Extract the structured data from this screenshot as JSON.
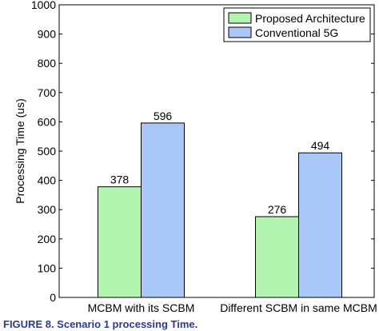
{
  "chart_data": {
    "type": "bar",
    "categories": [
      "MCBM with its SCBM",
      "Different SCBM in same MCBM"
    ],
    "series": [
      {
        "name": "Proposed Architecture",
        "values": [
          378,
          276
        ],
        "color": "#b3f5b0"
      },
      {
        "name": "Conventional 5G",
        "values": [
          596,
          494
        ],
        "color": "#a9c7f7"
      }
    ],
    "ylabel": "Processing Time (us)",
    "xlabel": "",
    "ylim": [
      0,
      1000
    ],
    "yticks": [
      0,
      100,
      200,
      300,
      400,
      500,
      600,
      700,
      800,
      900,
      1000
    ],
    "grid": false,
    "legend": "top-right",
    "data_labels": true
  },
  "caption": "FIGURE 8. Scenario 1 processing Time."
}
